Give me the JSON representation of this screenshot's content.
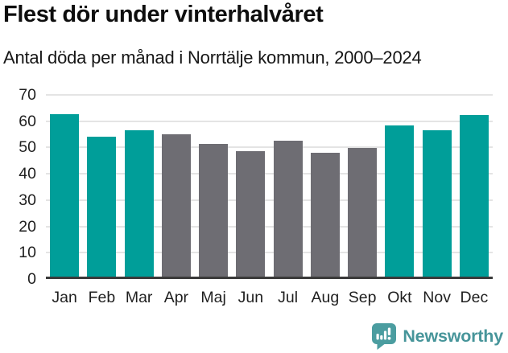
{
  "header": {
    "title": "Flest dör under vinterhalvåret",
    "subtitle": "Antal döda per månad i Norrtälje kommun, 2000–2024"
  },
  "chart_data": {
    "type": "bar",
    "title": "Flest dör under vinterhalvåret",
    "subtitle": "Antal döda per månad i Norrtälje kommun, 2000–2024",
    "categories": [
      "Jan",
      "Feb",
      "Mar",
      "Apr",
      "Maj",
      "Jun",
      "Jul",
      "Aug",
      "Sep",
      "Okt",
      "Nov",
      "Dec"
    ],
    "values": [
      62.5,
      53.7,
      56.4,
      54.7,
      51.0,
      48.3,
      52.2,
      47.6,
      49.4,
      58.2,
      56.1,
      62.0
    ],
    "bar_colors": [
      "#009e99",
      "#009e99",
      "#009e99",
      "#6e6d73",
      "#6e6d73",
      "#6e6d73",
      "#6e6d73",
      "#6e6d73",
      "#6e6d73",
      "#009e99",
      "#009e99",
      "#009e99"
    ],
    "xlabel": "",
    "ylabel": "",
    "ylim": [
      0,
      70
    ],
    "yticks": [
      0,
      10,
      20,
      30,
      40,
      50,
      60,
      70
    ],
    "grid": true,
    "legend_position": "none",
    "colors": {
      "highlight_teal": "#009e99",
      "neutral_gray": "#6e6d73",
      "gridline": "#e4e4e4",
      "axis_line": "#3a3a3a"
    }
  },
  "footer": {
    "brand": "Newsworthy",
    "brand_color": "#47959a",
    "icon": "newsworthy-speech-bubble-bar-chart-icon"
  }
}
